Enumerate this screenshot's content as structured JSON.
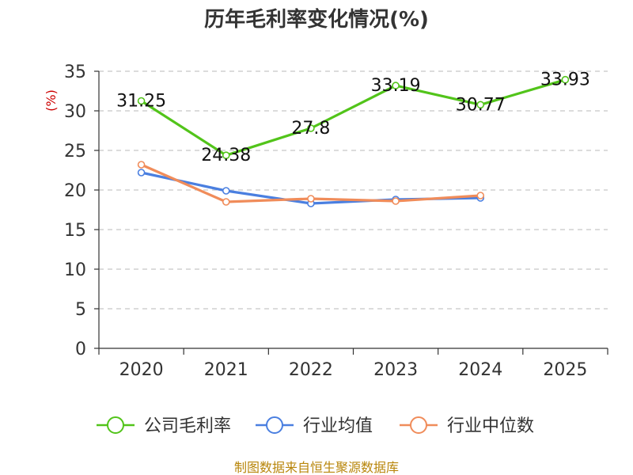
{
  "colors": {
    "title": "#333333",
    "axis": "#333333",
    "grid": "#c8c8c8",
    "unit": "#cc0000",
    "source": "#b8860b",
    "company": "#52c41a",
    "industry_avg": "#4a7fe0",
    "industry_median": "#f08c5a"
  },
  "source_text": "制图数据来自恒生聚源数据库",
  "chart_data": {
    "type": "line",
    "title": "历年毛利率变化情况(%)",
    "ylabel": "(%)",
    "xlabel": "",
    "categories": [
      "2020",
      "2021",
      "2022",
      "2023",
      "2024",
      "2025"
    ],
    "ylim": [
      0,
      35
    ],
    "yticks": [
      0,
      5,
      10,
      15,
      20,
      25,
      30,
      35
    ],
    "grid": "horizontal dashed",
    "legend_position": "bottom",
    "series": [
      {
        "name": "公司毛利率",
        "color": "#52c41a",
        "values": [
          31.25,
          24.38,
          27.8,
          33.19,
          30.77,
          33.93
        ],
        "labels": [
          "31.25",
          "24.38",
          "27.8",
          "33.19",
          "30.77",
          "33.93"
        ],
        "show_labels": true
      },
      {
        "name": "行业均值",
        "color": "#4a7fe0",
        "values": [
          22.2,
          19.9,
          18.3,
          18.8,
          19.0,
          null
        ],
        "show_labels": false
      },
      {
        "name": "行业中位数",
        "color": "#f08c5a",
        "values": [
          23.2,
          18.5,
          18.9,
          18.6,
          19.3,
          null
        ],
        "show_labels": false
      }
    ]
  }
}
